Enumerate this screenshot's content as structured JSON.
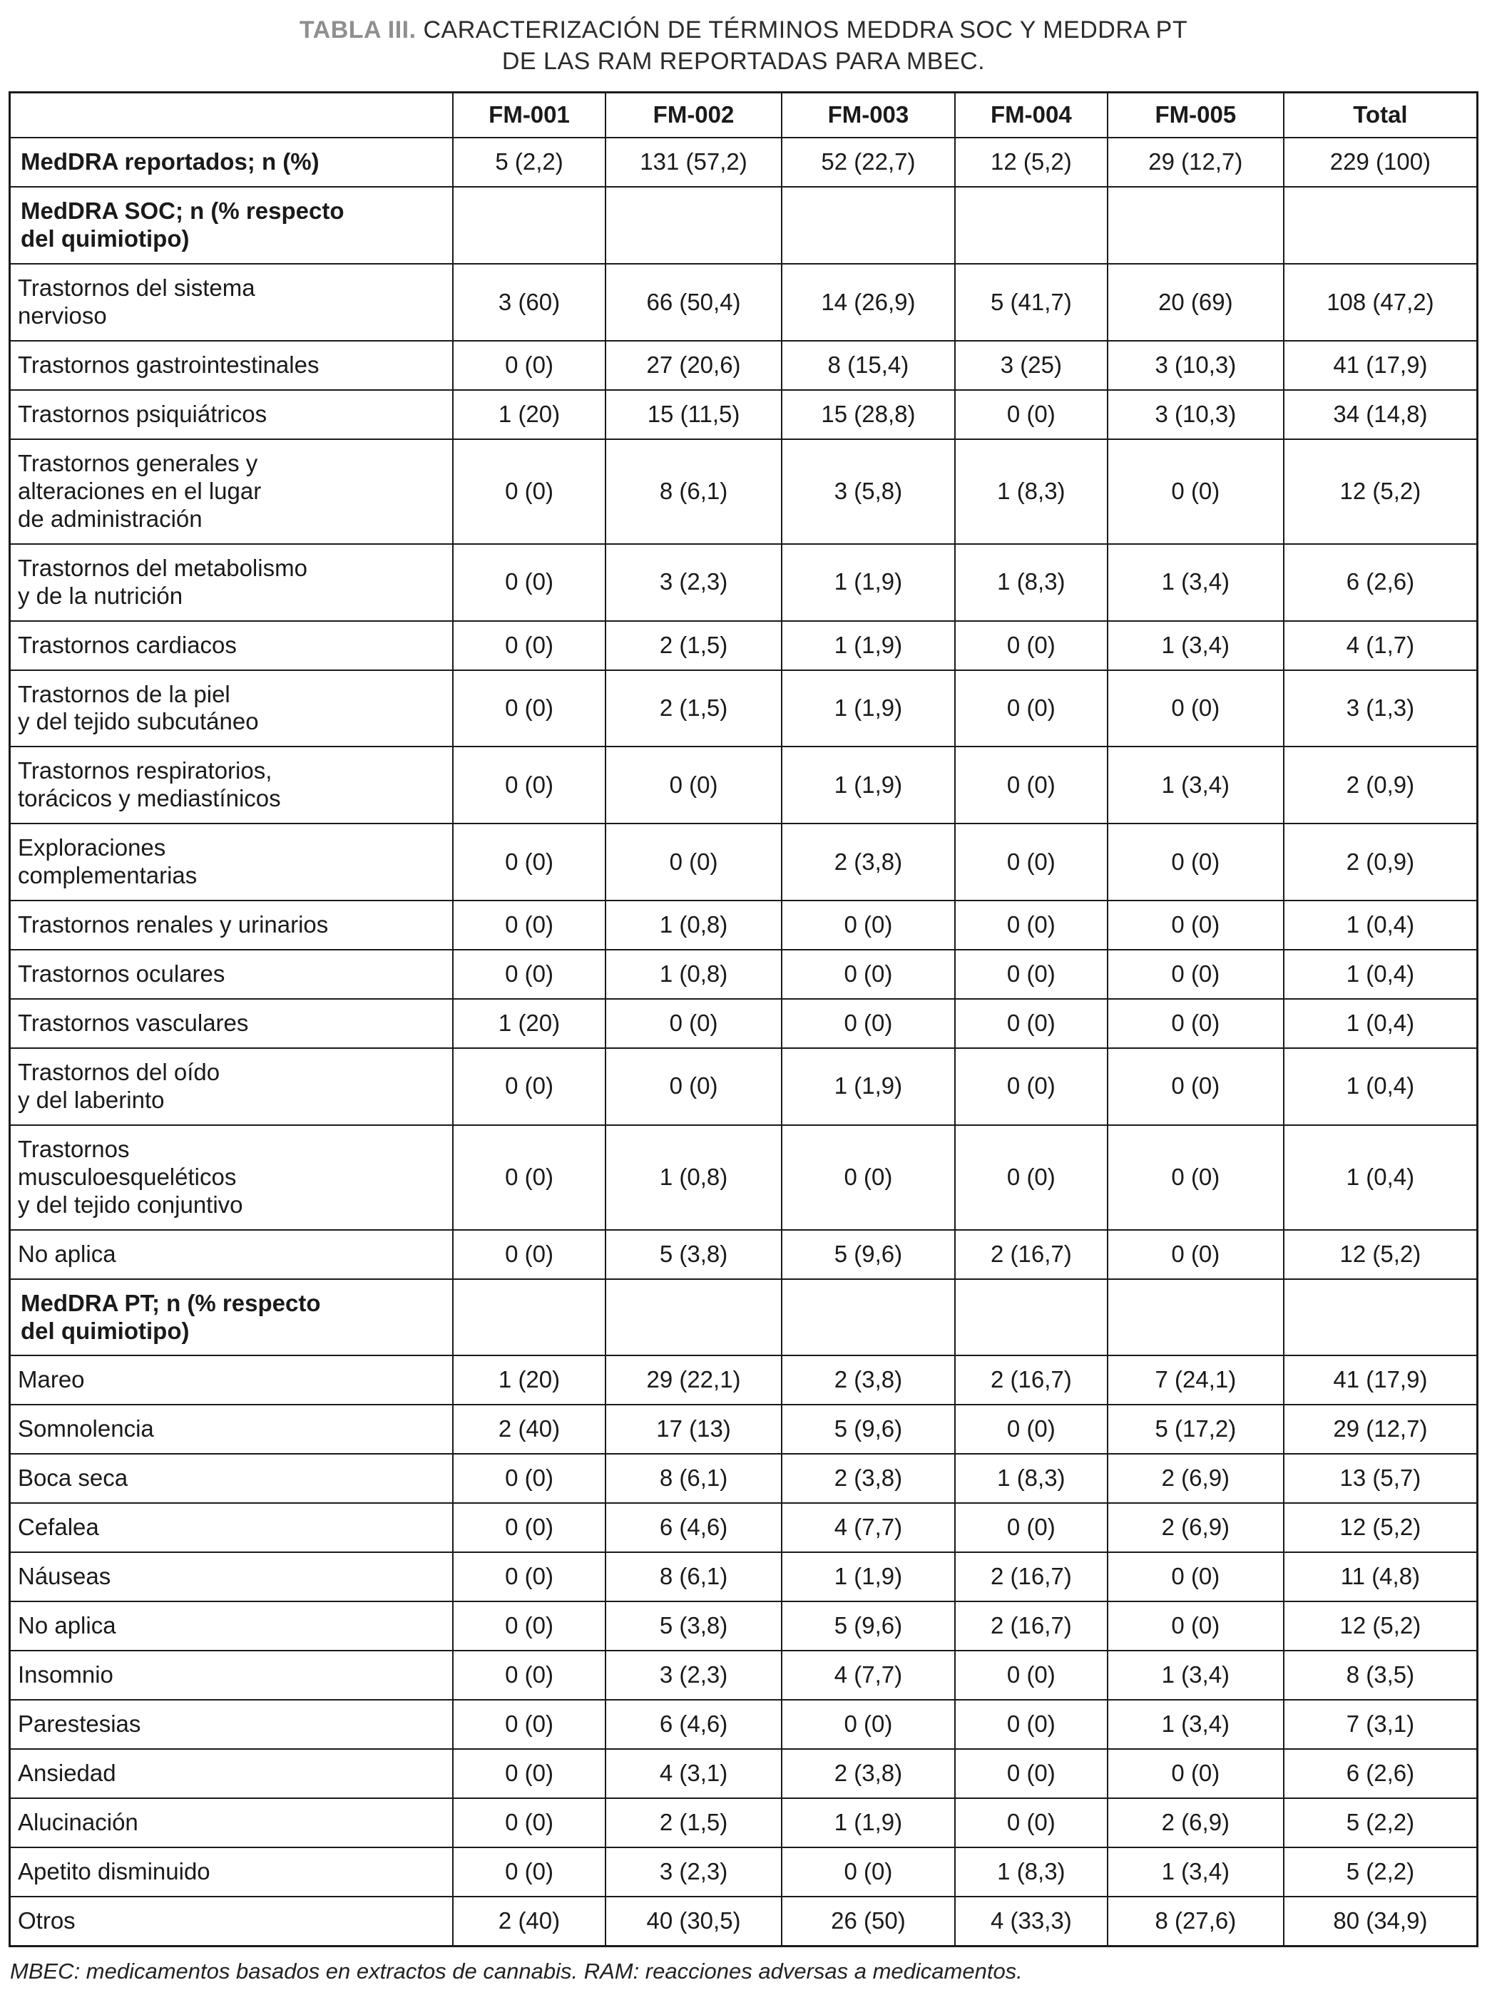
{
  "title": {
    "label": "TABLA III.",
    "text": " CARACTERIZACIÓN DE TÉRMINOS MEDDRA SOC Y MEDDRA PT\nDE LAS RAM REPORTADAS PARA MBEC."
  },
  "colors": {
    "text": "#1a1a1a",
    "border": "#1a1a1a",
    "title_label_gray": "#8f8f8f",
    "background": "#ffffff"
  },
  "table": {
    "columns": [
      "",
      "FM-001",
      "FM-002",
      "FM-003",
      "FM-004",
      "FM-005",
      "Total"
    ],
    "rows": [
      {
        "label": "MedDRA reportados; n (%)",
        "type": "bold",
        "values": [
          "5 (2,2)",
          "131 (57,2)",
          "52 (22,7)",
          "12 (5,2)",
          "29 (12,7)",
          "229 (100)"
        ]
      },
      {
        "label": "MedDRA SOC; n (% respecto\ndel quimiotipo)",
        "type": "section",
        "values": [
          "",
          "",
          "",
          "",
          "",
          ""
        ]
      },
      {
        "label": "Trastornos del sistema\nnervioso",
        "type": "sub",
        "values": [
          "3 (60)",
          "66 (50,4)",
          "14 (26,9)",
          "5 (41,7)",
          "20 (69)",
          "108 (47,2)"
        ]
      },
      {
        "label": "Trastornos gastrointestinales",
        "type": "sub",
        "values": [
          "0 (0)",
          "27 (20,6)",
          "8 (15,4)",
          "3 (25)",
          "3 (10,3)",
          "41 (17,9)"
        ]
      },
      {
        "label": "Trastornos psiquiátricos",
        "type": "sub",
        "values": [
          "1 (20)",
          "15 (11,5)",
          "15 (28,8)",
          "0 (0)",
          "3 (10,3)",
          "34 (14,8)"
        ]
      },
      {
        "label": "Trastornos generales y\nalteraciones en el lugar\nde administración",
        "type": "sub",
        "values": [
          "0 (0)",
          "8 (6,1)",
          "3 (5,8)",
          "1 (8,3)",
          "0 (0)",
          "12 (5,2)"
        ]
      },
      {
        "label": "Trastornos del metabolismo\ny de la nutrición",
        "type": "sub",
        "values": [
          "0 (0)",
          "3 (2,3)",
          "1 (1,9)",
          "1 (8,3)",
          "1 (3,4)",
          "6 (2,6)"
        ]
      },
      {
        "label": "Trastornos cardiacos",
        "type": "sub",
        "values": [
          "0 (0)",
          "2 (1,5)",
          "1 (1,9)",
          "0 (0)",
          "1 (3,4)",
          "4 (1,7)"
        ]
      },
      {
        "label": "Trastornos de la piel\ny del tejido subcutáneo",
        "type": "sub",
        "values": [
          "0 (0)",
          "2 (1,5)",
          "1 (1,9)",
          "0 (0)",
          "0 (0)",
          "3 (1,3)"
        ]
      },
      {
        "label": "Trastornos respiratorios,\ntorácicos y mediastínicos",
        "type": "sub",
        "values": [
          "0 (0)",
          "0 (0)",
          "1 (1,9)",
          "0 (0)",
          "1 (3,4)",
          "2 (0,9)"
        ]
      },
      {
        "label": "Exploraciones\ncomplementarias",
        "type": "sub",
        "values": [
          "0 (0)",
          "0 (0)",
          "2 (3,8)",
          "0 (0)",
          "0 (0)",
          "2 (0,9)"
        ]
      },
      {
        "label": "Trastornos renales y urinarios",
        "type": "sub",
        "values": [
          "0 (0)",
          "1 (0,8)",
          "0 (0)",
          "0 (0)",
          "0 (0)",
          "1 (0,4)"
        ]
      },
      {
        "label": "Trastornos oculares",
        "type": "sub",
        "values": [
          "0 (0)",
          "1 (0,8)",
          "0 (0)",
          "0 (0)",
          "0 (0)",
          "1 (0,4)"
        ]
      },
      {
        "label": "Trastornos vasculares",
        "type": "sub",
        "values": [
          "1 (20)",
          "0 (0)",
          "0 (0)",
          "0 (0)",
          "0 (0)",
          "1 (0,4)"
        ]
      },
      {
        "label": "Trastornos del oído\ny del laberinto",
        "type": "sub",
        "values": [
          "0 (0)",
          "0 (0)",
          "1 (1,9)",
          "0 (0)",
          "0 (0)",
          "1 (0,4)"
        ]
      },
      {
        "label": "Trastornos\nmusculoesqueléticos\ny del tejido conjuntivo",
        "type": "sub",
        "values": [
          "0 (0)",
          "1 (0,8)",
          "0 (0)",
          "0 (0)",
          "0 (0)",
          "1 (0,4)"
        ]
      },
      {
        "label": "No aplica",
        "type": "sub",
        "values": [
          "0 (0)",
          "5 (3,8)",
          "5 (9,6)",
          "2 (16,7)",
          "0 (0)",
          "12 (5,2)"
        ]
      },
      {
        "label": "MedDRA PT; n (% respecto\ndel quimiotipo)",
        "type": "section",
        "values": [
          "",
          "",
          "",
          "",
          "",
          ""
        ]
      },
      {
        "label": "Mareo",
        "type": "sub",
        "values": [
          "1 (20)",
          "29 (22,1)",
          "2 (3,8)",
          "2 (16,7)",
          "7 (24,1)",
          "41 (17,9)"
        ]
      },
      {
        "label": "Somnolencia",
        "type": "sub",
        "values": [
          "2 (40)",
          "17 (13)",
          "5 (9,6)",
          "0 (0)",
          "5 (17,2)",
          "29 (12,7)"
        ]
      },
      {
        "label": "Boca seca",
        "type": "sub",
        "values": [
          "0 (0)",
          "8 (6,1)",
          "2 (3,8)",
          "1 (8,3)",
          "2 (6,9)",
          "13 (5,7)"
        ]
      },
      {
        "label": "Cefalea",
        "type": "sub",
        "values": [
          "0 (0)",
          "6 (4,6)",
          "4 (7,7)",
          "0 (0)",
          "2 (6,9)",
          "12 (5,2)"
        ]
      },
      {
        "label": "Náuseas",
        "type": "sub",
        "values": [
          "0 (0)",
          "8 (6,1)",
          "1 (1,9)",
          "2 (16,7)",
          "0 (0)",
          "11 (4,8)"
        ]
      },
      {
        "label": "No aplica",
        "type": "sub",
        "values": [
          "0 (0)",
          "5 (3,8)",
          "5 (9,6)",
          "2 (16,7)",
          "0 (0)",
          "12 (5,2)"
        ]
      },
      {
        "label": "Insomnio",
        "type": "sub",
        "values": [
          "0 (0)",
          "3 (2,3)",
          "4 (7,7)",
          "0 (0)",
          "1 (3,4)",
          "8 (3,5)"
        ]
      },
      {
        "label": "Parestesias",
        "type": "sub",
        "values": [
          "0 (0)",
          "6 (4,6)",
          "0 (0)",
          "0 (0)",
          "1 (3,4)",
          "7 (3,1)"
        ]
      },
      {
        "label": "Ansiedad",
        "type": "sub",
        "values": [
          "0 (0)",
          "4 (3,1)",
          "2 (3,8)",
          "0 (0)",
          "0 (0)",
          "6 (2,6)"
        ]
      },
      {
        "label": "Alucinación",
        "type": "sub",
        "values": [
          "0 (0)",
          "2 (1,5)",
          "1 (1,9)",
          "0 (0)",
          "2 (6,9)",
          "5 (2,2)"
        ]
      },
      {
        "label": "Apetito disminuido",
        "type": "sub",
        "values": [
          "0 (0)",
          "3 (2,3)",
          "0 (0)",
          "1 (8,3)",
          "1 (3,4)",
          "5 (2,2)"
        ]
      },
      {
        "label": "Otros",
        "type": "sub",
        "values": [
          "2 (40)",
          "40 (30,5)",
          "26 (50)",
          "4 (33,3)",
          "8 (27,6)",
          "80 (34,9)"
        ]
      }
    ]
  },
  "footnote": "MBEC: medicamentos basados en extractos de cannabis. RAM: reacciones adversas a medicamentos."
}
